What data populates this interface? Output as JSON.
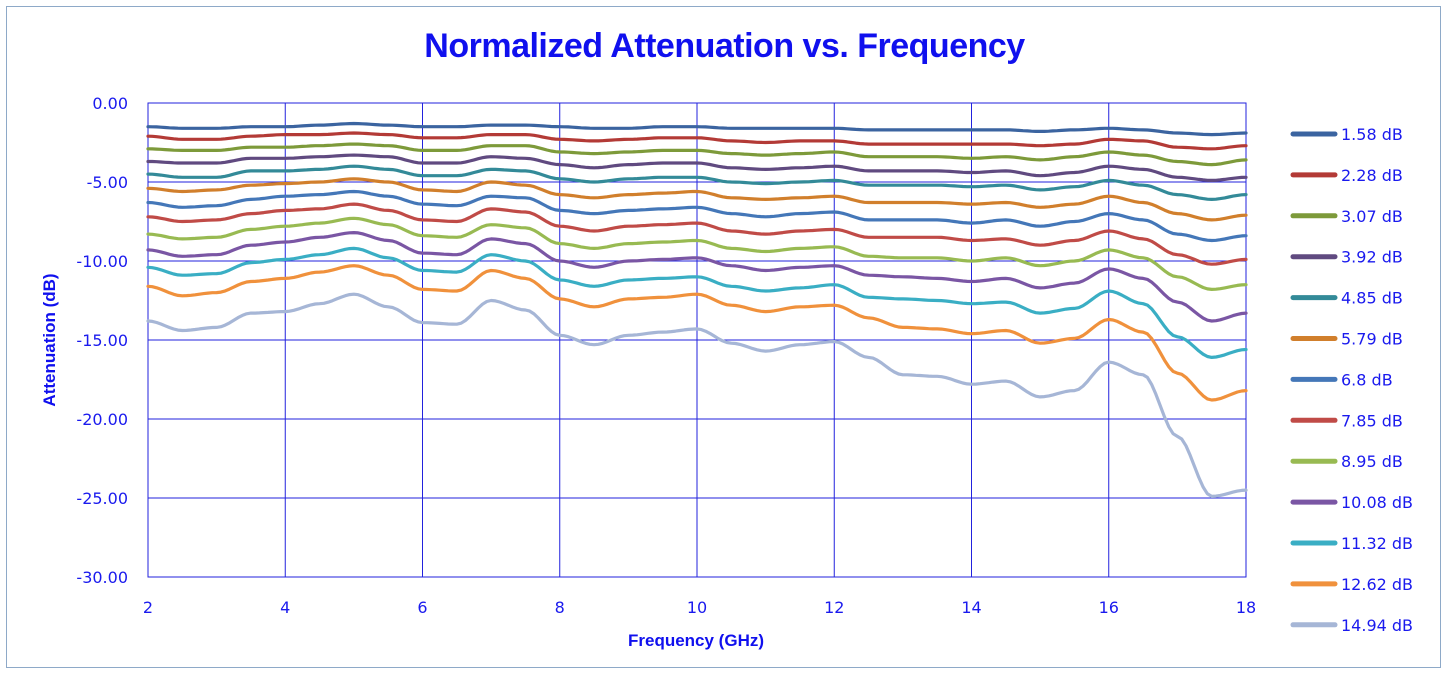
{
  "chart_data": {
    "type": "line",
    "title": "Normalized Attenuation vs. Frequency",
    "xlabel": "Frequency (GHz)",
    "ylabel": "Attenuation (dB)",
    "xlim": [
      2,
      18
    ],
    "ylim": [
      -30,
      0
    ],
    "x_ticks": [
      "2",
      "4",
      "6",
      "8",
      "10",
      "12",
      "14",
      "16",
      "18"
    ],
    "y_ticks": [
      "0.00",
      "-5.00",
      "-10.00",
      "-15.00",
      "-20.00",
      "-25.00",
      "-30.00"
    ],
    "grid": true,
    "legend_position": "right",
    "x": [
      2,
      2.5,
      3,
      3.5,
      4,
      4.5,
      5,
      5.5,
      6,
      6.5,
      7,
      7.5,
      8,
      8.5,
      9,
      9.5,
      10,
      10.5,
      11,
      11.5,
      12,
      12.5,
      13,
      13.5,
      14,
      14.5,
      15,
      15.5,
      16,
      16.5,
      17,
      17.5,
      18
    ],
    "series": [
      {
        "name": "1.58 dB",
        "color": "#3b64a0",
        "values": [
          -1.5,
          -1.6,
          -1.6,
          -1.5,
          -1.5,
          -1.4,
          -1.3,
          -1.4,
          -1.5,
          -1.5,
          -1.4,
          -1.4,
          -1.5,
          -1.6,
          -1.6,
          -1.5,
          -1.5,
          -1.6,
          -1.6,
          -1.6,
          -1.6,
          -1.7,
          -1.7,
          -1.7,
          -1.7,
          -1.7,
          -1.8,
          -1.7,
          -1.6,
          -1.7,
          -1.9,
          -2.0,
          -1.9
        ]
      },
      {
        "name": "2.28 dB",
        "color": "#b33a36",
        "values": [
          -2.1,
          -2.3,
          -2.3,
          -2.1,
          -2.0,
          -2.0,
          -1.9,
          -2.0,
          -2.2,
          -2.2,
          -2.0,
          -2.0,
          -2.3,
          -2.4,
          -2.3,
          -2.2,
          -2.2,
          -2.4,
          -2.5,
          -2.4,
          -2.4,
          -2.6,
          -2.6,
          -2.6,
          -2.6,
          -2.6,
          -2.7,
          -2.6,
          -2.3,
          -2.4,
          -2.8,
          -2.9,
          -2.7
        ]
      },
      {
        "name": "3.07 dB",
        "color": "#7d9a3a",
        "values": [
          -2.9,
          -3.0,
          -3.0,
          -2.8,
          -2.8,
          -2.7,
          -2.6,
          -2.7,
          -3.0,
          -3.0,
          -2.7,
          -2.7,
          -3.1,
          -3.2,
          -3.1,
          -3.0,
          -3.0,
          -3.2,
          -3.3,
          -3.2,
          -3.1,
          -3.4,
          -3.4,
          -3.4,
          -3.5,
          -3.4,
          -3.6,
          -3.4,
          -3.1,
          -3.3,
          -3.7,
          -3.9,
          -3.6
        ]
      },
      {
        "name": "3.92 dB",
        "color": "#604a80",
        "values": [
          -3.7,
          -3.8,
          -3.8,
          -3.5,
          -3.5,
          -3.4,
          -3.3,
          -3.4,
          -3.8,
          -3.8,
          -3.4,
          -3.5,
          -3.9,
          -4.1,
          -3.9,
          -3.8,
          -3.8,
          -4.1,
          -4.2,
          -4.1,
          -4.0,
          -4.3,
          -4.3,
          -4.3,
          -4.4,
          -4.3,
          -4.6,
          -4.4,
          -4.0,
          -4.2,
          -4.7,
          -4.9,
          -4.7
        ]
      },
      {
        "name": "4.85 dB",
        "color": "#338a98",
        "values": [
          -4.5,
          -4.7,
          -4.7,
          -4.3,
          -4.3,
          -4.2,
          -4.0,
          -4.2,
          -4.6,
          -4.6,
          -4.2,
          -4.3,
          -4.8,
          -5.0,
          -4.8,
          -4.7,
          -4.7,
          -5.0,
          -5.1,
          -5.0,
          -4.9,
          -5.2,
          -5.2,
          -5.2,
          -5.3,
          -5.2,
          -5.5,
          -5.3,
          -4.9,
          -5.2,
          -5.8,
          -6.1,
          -5.8
        ]
      },
      {
        "name": "5.79 dB",
        "color": "#d17f2c",
        "values": [
          -5.4,
          -5.6,
          -5.5,
          -5.2,
          -5.1,
          -5.0,
          -4.8,
          -5.0,
          -5.5,
          -5.6,
          -5.0,
          -5.2,
          -5.8,
          -6.0,
          -5.8,
          -5.7,
          -5.6,
          -6.0,
          -6.1,
          -6.0,
          -5.9,
          -6.3,
          -6.3,
          -6.3,
          -6.4,
          -6.3,
          -6.6,
          -6.4,
          -5.9,
          -6.3,
          -7.0,
          -7.4,
          -7.1
        ]
      },
      {
        "name": "6.8 dB",
        "color": "#4477b8",
        "values": [
          -6.3,
          -6.6,
          -6.5,
          -6.1,
          -5.9,
          -5.8,
          -5.6,
          -5.9,
          -6.4,
          -6.5,
          -5.9,
          -6.0,
          -6.8,
          -7.0,
          -6.8,
          -6.7,
          -6.6,
          -7.0,
          -7.2,
          -7.0,
          -6.9,
          -7.4,
          -7.4,
          -7.4,
          -7.6,
          -7.4,
          -7.8,
          -7.5,
          -7.0,
          -7.4,
          -8.3,
          -8.7,
          -8.4
        ]
      },
      {
        "name": "7.85 dB",
        "color": "#c04b47",
        "values": [
          -7.2,
          -7.5,
          -7.4,
          -7.0,
          -6.8,
          -6.7,
          -6.4,
          -6.8,
          -7.4,
          -7.5,
          -6.7,
          -6.9,
          -7.8,
          -8.1,
          -7.8,
          -7.7,
          -7.6,
          -8.1,
          -8.3,
          -8.1,
          -8.0,
          -8.5,
          -8.5,
          -8.5,
          -8.7,
          -8.6,
          -9.0,
          -8.7,
          -8.1,
          -8.6,
          -9.6,
          -10.2,
          -9.9
        ]
      },
      {
        "name": "8.95 dB",
        "color": "#98ba52",
        "values": [
          -8.3,
          -8.6,
          -8.5,
          -8.0,
          -7.8,
          -7.6,
          -7.3,
          -7.7,
          -8.4,
          -8.5,
          -7.7,
          -7.9,
          -8.9,
          -9.2,
          -8.9,
          -8.8,
          -8.7,
          -9.2,
          -9.4,
          -9.2,
          -9.1,
          -9.7,
          -9.8,
          -9.8,
          -10.0,
          -9.8,
          -10.3,
          -10.0,
          -9.3,
          -9.8,
          -11.0,
          -11.8,
          -11.5
        ]
      },
      {
        "name": "10.08 dB",
        "color": "#7a56a4",
        "values": [
          -9.3,
          -9.7,
          -9.6,
          -9.0,
          -8.8,
          -8.5,
          -8.2,
          -8.7,
          -9.5,
          -9.6,
          -8.6,
          -8.9,
          -10.0,
          -10.4,
          -10.0,
          -9.9,
          -9.8,
          -10.3,
          -10.6,
          -10.4,
          -10.3,
          -10.9,
          -11.0,
          -11.1,
          -11.3,
          -11.1,
          -11.7,
          -11.4,
          -10.5,
          -11.1,
          -12.6,
          -13.8,
          -13.3
        ]
      },
      {
        "name": "11.32 dB",
        "color": "#3aaec4",
        "values": [
          -10.4,
          -10.9,
          -10.8,
          -10.1,
          -9.9,
          -9.6,
          -9.2,
          -9.8,
          -10.6,
          -10.7,
          -9.6,
          -10.0,
          -11.2,
          -11.6,
          -11.2,
          -11.1,
          -11.0,
          -11.6,
          -11.9,
          -11.7,
          -11.5,
          -12.3,
          -12.4,
          -12.5,
          -12.7,
          -12.6,
          -13.3,
          -13.0,
          -11.9,
          -12.7,
          -14.8,
          -16.1,
          -15.6
        ]
      },
      {
        "name": "12.62 dB",
        "color": "#f0913c",
        "values": [
          -11.6,
          -12.2,
          -12.0,
          -11.3,
          -11.1,
          -10.7,
          -10.3,
          -10.9,
          -11.8,
          -11.9,
          -10.6,
          -11.1,
          -12.4,
          -12.9,
          -12.4,
          -12.3,
          -12.1,
          -12.8,
          -13.2,
          -12.9,
          -12.8,
          -13.6,
          -14.2,
          -14.3,
          -14.6,
          -14.4,
          -15.2,
          -14.9,
          -13.7,
          -14.5,
          -17.1,
          -18.8,
          -18.2
        ]
      },
      {
        "name": "14.94 dB",
        "color": "#a6b6d6",
        "values": [
          -13.8,
          -14.4,
          -14.2,
          -13.3,
          -13.2,
          -12.7,
          -12.1,
          -12.9,
          -13.9,
          -14.0,
          -12.5,
          -13.1,
          -14.7,
          -15.3,
          -14.7,
          -14.5,
          -14.3,
          -15.2,
          -15.7,
          -15.3,
          -15.1,
          -16.1,
          -17.2,
          -17.3,
          -17.8,
          -17.6,
          -18.6,
          -18.2,
          -16.4,
          -17.2,
          -21.1,
          -24.9,
          -24.5
        ]
      }
    ]
  }
}
